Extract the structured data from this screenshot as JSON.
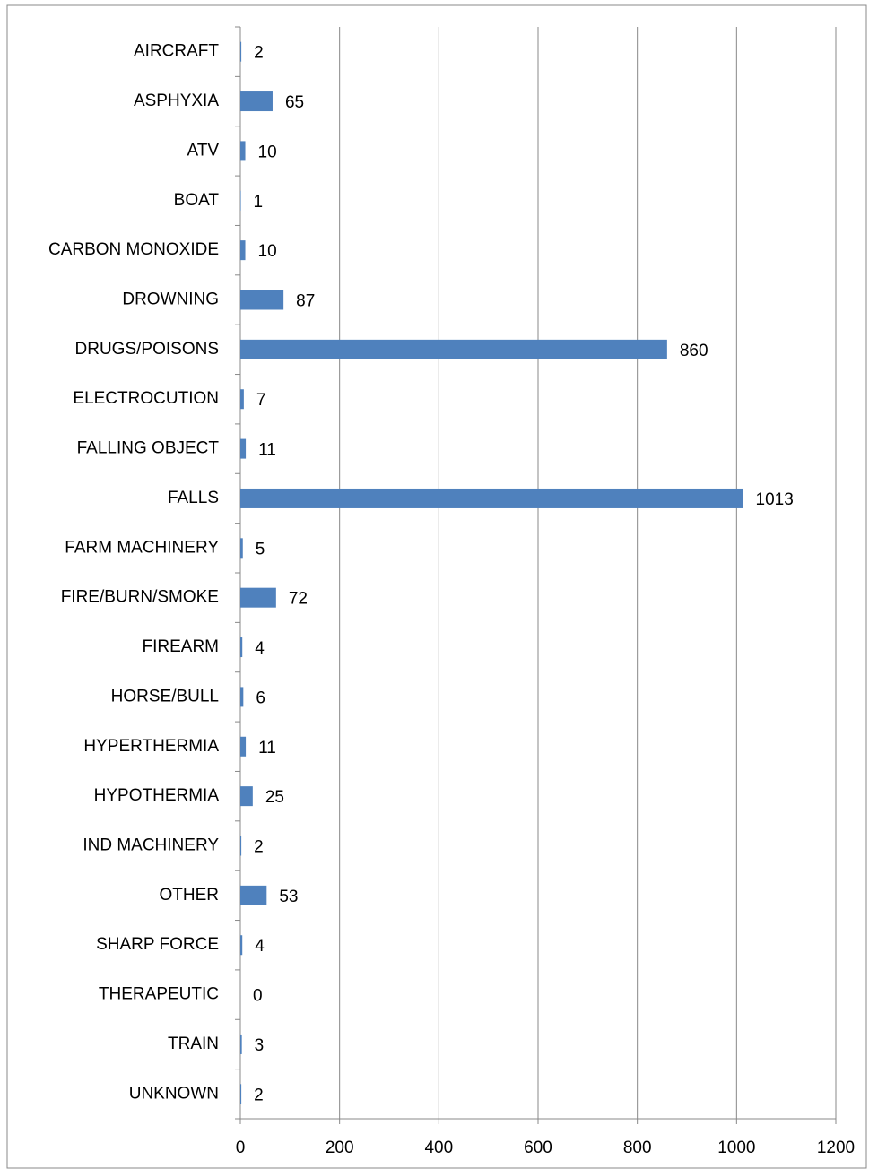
{
  "chart_data": {
    "type": "bar",
    "orientation": "horizontal",
    "categories": [
      "AIRCRAFT",
      "ASPHYXIA",
      "ATV",
      "BOAT",
      "CARBON MONOXIDE",
      "DROWNING",
      "DRUGS/POISONS",
      "ELECTROCUTION",
      "FALLING OBJECT",
      "FALLS",
      "FARM MACHINERY",
      "FIRE/BURN/SMOKE",
      "FIREARM",
      "HORSE/BULL",
      "HYPERTHERMIA",
      "HYPOTHERMIA",
      "IND MACHINERY",
      "OTHER",
      "SHARP FORCE",
      "THERAPEUTIC",
      "TRAIN",
      "UNKNOWN"
    ],
    "values": [
      2,
      65,
      10,
      1,
      10,
      87,
      860,
      7,
      11,
      1013,
      5,
      72,
      4,
      6,
      11,
      25,
      2,
      53,
      4,
      0,
      3,
      2
    ],
    "color": "#4f81bd",
    "xlim": [
      0,
      1200
    ],
    "xticks": [
      0,
      200,
      400,
      600,
      800,
      1000,
      1200
    ],
    "grid": true
  }
}
